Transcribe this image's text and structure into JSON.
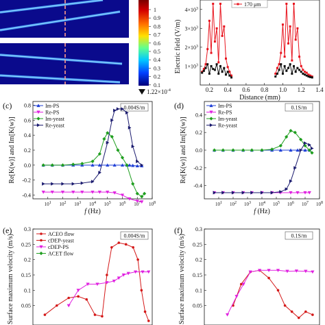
{
  "colorbar": {
    "ticks": [
      "1",
      "0.9",
      "0.8",
      "0.7",
      "0.6",
      "0.5",
      "0.4",
      "0.3",
      "0.2",
      "0.1"
    ],
    "min_label": "1.22×10",
    "min_exp": "-4"
  },
  "chart_data": [
    {
      "id": "b",
      "type": "line",
      "ylabel": "Electric field (V/m)",
      "xlabel": "Distance (mm)",
      "xlim": [
        0.1,
        1.4
      ],
      "xticks": [
        "0.2",
        "0.4",
        "0.6",
        "0.8",
        "1.0",
        "1.2",
        "1.4"
      ],
      "ylim": [
        0,
        4500
      ],
      "yticks": [
        {
          "v": 1000,
          "m": "1×10",
          "e": "3"
        },
        {
          "v": 2000,
          "m": "2×10",
          "e": "3"
        },
        {
          "v": 3000,
          "m": "3×10",
          "e": "3"
        },
        {
          "v": 4000,
          "m": "4×10",
          "e": "3"
        }
      ],
      "legend": [
        "170 μm"
      ],
      "series": [
        {
          "name": "170 μm",
          "color": "#e8141e",
          "x": [
            0.12,
            0.14,
            0.16,
            0.18,
            0.2,
            0.22,
            0.24,
            0.26,
            0.28,
            0.3,
            0.32,
            0.34,
            0.36,
            0.38,
            0.4,
            0.42,
            0.44,
            0.92,
            0.94,
            0.96,
            0.98,
            1.0,
            1.02,
            1.04,
            1.06,
            1.08,
            1.1,
            1.12,
            1.14,
            1.16,
            1.18,
            1.2,
            1.22,
            1.24,
            1.26,
            1.28,
            1.3,
            1.32
          ],
          "y": [
            700,
            850,
            1100,
            1900,
            3400,
            1700,
            4300,
            2300,
            3000,
            1200,
            4300,
            2600,
            3100,
            1400,
            950,
            700,
            500,
            600,
            900,
            1100,
            1700,
            3200,
            1500,
            4300,
            2200,
            3100,
            1300,
            4300,
            2400,
            3000,
            1500,
            1000,
            800,
            700,
            650,
            550,
            500,
            450
          ]
        },
        {
          "name": "",
          "color": "#111111",
          "x": [
            0.12,
            0.14,
            0.16,
            0.18,
            0.2,
            0.22,
            0.24,
            0.26,
            0.28,
            0.3,
            0.32,
            0.34,
            0.36,
            0.38,
            0.4,
            0.42,
            0.44,
            0.92,
            0.94,
            0.96,
            0.98,
            1.0,
            1.02,
            1.04,
            1.06,
            1.08,
            1.1,
            1.12,
            1.14,
            1.16,
            1.18,
            1.2,
            1.22,
            1.24,
            1.26,
            1.28,
            1.3,
            1.32
          ],
          "y": [
            650,
            750,
            900,
            1100,
            600,
            1000,
            850,
            800,
            1100,
            600,
            1000,
            700,
            900,
            550,
            700,
            500,
            400,
            450,
            600,
            800,
            1100,
            600,
            1000,
            750,
            900,
            1100,
            600,
            1000,
            700,
            900,
            800,
            700,
            600,
            550,
            500,
            450,
            420,
            400
          ]
        }
      ]
    },
    {
      "id": "c",
      "type": "line",
      "label": "(c)",
      "ylabel": "Re[K(w)] and Im[K(w)]",
      "xlabel": "f (Hz)",
      "x_scale": "log",
      "xlim": [
        1,
        100000000
      ],
      "xticks": [
        {
          "v": 10,
          "e": "1"
        },
        {
          "v": 100,
          "e": "2"
        },
        {
          "v": 1000,
          "e": "3"
        },
        {
          "v": 10000,
          "e": "4"
        },
        {
          "v": 100000,
          "e": "5"
        },
        {
          "v": 1000000,
          "e": "6"
        },
        {
          "v": 10000000,
          "e": "7"
        },
        {
          "v": 100000000,
          "e": "8"
        }
      ],
      "ylim": [
        -0.45,
        0.85
      ],
      "yticks": [
        "0.8",
        "0.6",
        "0.4",
        "0.2",
        "0.0",
        "-0.2",
        "-0.4"
      ],
      "annotation": "0.004S/m",
      "series": [
        {
          "name": "Im-PS",
          "color": "#1f3fd6",
          "marker": "tri-up",
          "x": [
            5,
            20,
            100,
            500,
            2000,
            10000,
            30000,
            100000,
            300000,
            1000000,
            2000000,
            3000000,
            5000000,
            10000000,
            20000000
          ],
          "y": [
            0,
            0,
            0,
            0,
            0,
            0,
            0,
            0,
            0,
            0,
            0,
            0,
            -0.005,
            -0.01,
            -0.01
          ]
        },
        {
          "name": "Re-PS",
          "color": "#e020e0",
          "marker": "tri-down",
          "x": [
            5,
            20,
            100,
            500,
            2000,
            10000,
            30000,
            100000,
            300000,
            1000000,
            3000000,
            10000000,
            20000000
          ],
          "y": [
            -0.36,
            -0.36,
            -0.36,
            -0.36,
            -0.36,
            -0.36,
            -0.36,
            -0.36,
            -0.37,
            -0.4,
            -0.45,
            -0.48,
            -0.49
          ]
        },
        {
          "name": "Im-yeast",
          "color": "#1f9e1f",
          "marker": "diamond",
          "x": [
            5,
            20,
            100,
            500,
            2000,
            10000,
            30000,
            60000,
            100000,
            200000,
            500000,
            1000000,
            2000000,
            5000000,
            10000000,
            20000000,
            30000000
          ],
          "y": [
            0,
            0,
            0,
            0.01,
            0.02,
            0.05,
            0.15,
            0.35,
            0.43,
            0.38,
            0.2,
            0.1,
            0.0,
            -0.25,
            -0.38,
            -0.42,
            -0.38
          ]
        },
        {
          "name": "Re-yeast",
          "color": "#1a1a6e",
          "marker": "tri-right",
          "x": [
            5,
            20,
            100,
            500,
            2000,
            10000,
            30000,
            100000,
            200000,
            300000,
            500000,
            1000000,
            2000000,
            3000000,
            5000000,
            10000000,
            20000000
          ],
          "y": [
            -0.25,
            -0.25,
            -0.25,
            -0.25,
            -0.24,
            -0.22,
            -0.1,
            0.3,
            0.6,
            0.73,
            0.75,
            0.75,
            0.7,
            0.5,
            0.25,
            0.05,
            0.0
          ]
        }
      ]
    },
    {
      "id": "d",
      "type": "line",
      "label": "(d)",
      "ylabel": "Re[K(w)] and Im[K(w)]",
      "xlabel": "f (Hz)",
      "x_scale": "log",
      "xlim": [
        1,
        100000000
      ],
      "xticks": [
        {
          "v": 10,
          "e": "1"
        },
        {
          "v": 100,
          "e": "2"
        },
        {
          "v": 1000,
          "e": "3"
        },
        {
          "v": 10000,
          "e": "4"
        },
        {
          "v": 100000,
          "e": "5"
        },
        {
          "v": 1000000,
          "e": "6"
        },
        {
          "v": 10000000,
          "e": "7"
        },
        {
          "v": 100000000,
          "e": "8"
        }
      ],
      "ylim": [
        -0.55,
        0.55
      ],
      "yticks": [
        "0.4",
        "0.2",
        "0.0",
        "-0.2",
        "-0.4"
      ],
      "annotation": "0.1S/m",
      "series": [
        {
          "name": "Im-PS",
          "color": "#1f3fd6",
          "marker": "tri-up",
          "x": [
            5,
            20,
            100,
            500,
            2000,
            10000,
            50000,
            200000,
            1000000,
            3000000,
            10000000,
            20000000
          ],
          "y": [
            0,
            0,
            0,
            0,
            0,
            0,
            0,
            0,
            0,
            0,
            0,
            0
          ]
        },
        {
          "name": "Re-PS",
          "color": "#e020e0",
          "marker": "tri-down",
          "x": [
            5,
            20,
            100,
            500,
            2000,
            10000,
            50000,
            200000,
            1000000,
            3000000,
            10000000,
            20000000
          ],
          "y": [
            -0.48,
            -0.48,
            -0.48,
            -0.48,
            -0.48,
            -0.48,
            -0.48,
            -0.48,
            -0.48,
            -0.48,
            -0.48,
            -0.48
          ]
        },
        {
          "name": "Im-yeast",
          "color": "#1f9e1f",
          "marker": "diamond",
          "x": [
            5,
            20,
            100,
            500,
            2000,
            10000,
            50000,
            200000,
            500000,
            1000000,
            2000000,
            5000000,
            10000000,
            20000000,
            30000000
          ],
          "y": [
            0,
            0,
            0,
            0,
            0,
            0,
            0.01,
            0.05,
            0.15,
            0.22,
            0.2,
            0.12,
            0.05,
            0.0,
            -0.03
          ]
        },
        {
          "name": "Re-yeast",
          "color": "#1a1a6e",
          "marker": "tri-right",
          "x": [
            5,
            20,
            100,
            500,
            2000,
            10000,
            50000,
            200000,
            500000,
            1000000,
            2000000,
            5000000,
            10000000,
            20000000,
            30000000
          ],
          "y": [
            -0.48,
            -0.48,
            -0.48,
            -0.48,
            -0.48,
            -0.48,
            -0.48,
            -0.47,
            -0.44,
            -0.35,
            -0.2,
            0.0,
            0.08,
            0.06,
            0.02
          ]
        }
      ]
    },
    {
      "id": "e",
      "type": "line",
      "label": "(e)",
      "ylabel": "Surface maximum velocity (m/s)",
      "ylim": [
        0,
        0.3
      ],
      "yticks": [
        "0.3",
        "0.25",
        "0.2",
        "0.15",
        "0.1",
        "0.05"
      ],
      "annotation": "0.004S/m",
      "legend": [
        "ACEO flow",
        "cDEP-yeast",
        "cDEP-PS",
        "ACET flow"
      ],
      "series": [
        {
          "name": "ACEO flow",
          "color": "#d41818",
          "marker": "circle",
          "t": [
            0.1,
            0.2,
            0.3,
            0.38,
            0.45,
            0.52,
            0.58,
            0.62,
            0.66,
            0.72,
            0.78,
            0.84,
            0.88,
            0.91,
            0.94,
            0.97
          ],
          "y": [
            0.02,
            0.05,
            0.075,
            0.08,
            0.07,
            0.02,
            0.015,
            0.15,
            0.24,
            0.255,
            0.25,
            0.24,
            0.2,
            0.1,
            0.03,
            0.0
          ]
        },
        {
          "name": "cDEP-yeast",
          "color": "#d41818",
          "marker": "circle",
          "t": [],
          "y": []
        },
        {
          "name": "cDEP-PS",
          "color": "#e020e0",
          "marker": "tri-down",
          "t": [
            0.3,
            0.38,
            0.46,
            0.54,
            0.62,
            0.68,
            0.72,
            0.76,
            0.8,
            0.86,
            0.92,
            0.97
          ],
          "y": [
            0.05,
            0.1,
            0.12,
            0.12,
            0.125,
            0.13,
            0.14,
            0.15,
            0.155,
            0.16,
            0.16,
            0.16
          ]
        },
        {
          "name": "ACET flow",
          "color": "#1f9e1f",
          "marker": "diamond",
          "t": [],
          "y": []
        }
      ]
    },
    {
      "id": "f",
      "type": "line",
      "label": "(f)",
      "ylabel": "Surface maximum velocity (m/s)",
      "ylim": [
        0,
        0.3
      ],
      "yticks": [
        "0.3",
        "0.25",
        "0.2",
        "0.15",
        "0.1",
        "0.05"
      ],
      "annotation": "0.1S/m",
      "series": [
        {
          "name": "ACEO",
          "color": "#d41818",
          "marker": "circle",
          "t": [
            0.25,
            0.32,
            0.4,
            0.48,
            0.56,
            0.64,
            0.7,
            0.76,
            0.82,
            0.88,
            0.94
          ],
          "y": [
            0.05,
            0.12,
            0.16,
            0.165,
            0.14,
            0.1,
            0.05,
            0.03,
            0.01,
            0.03,
            0.02
          ]
        },
        {
          "name": "cDEP-PS",
          "color": "#e020e0",
          "marker": "tri-down",
          "t": [
            0.2,
            0.28,
            0.34,
            0.4,
            0.48,
            0.56,
            0.64,
            0.72,
            0.8,
            0.88,
            0.94
          ],
          "y": [
            0.02,
            0.08,
            0.12,
            0.16,
            0.165,
            0.165,
            0.165,
            0.162,
            0.163,
            0.162,
            0.16
          ]
        }
      ]
    }
  ]
}
